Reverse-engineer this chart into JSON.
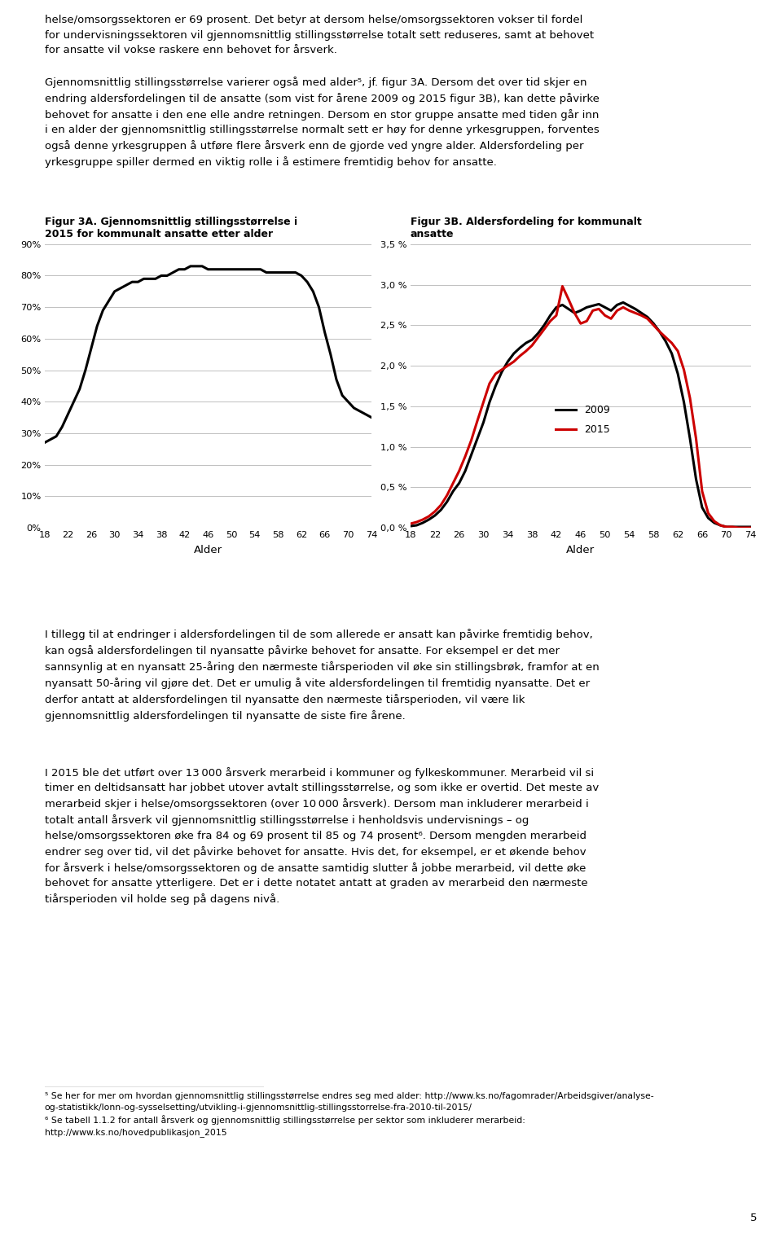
{
  "fig3a_title_line1": "Figur 3A. Gjennomsnittlig stillingsstørrelse i",
  "fig3a_title_line2": "2015 for kommunalt ansatte etter alder",
  "fig3b_title_line1": "Figur 3B. Aldersfordeling for kommunalt",
  "fig3b_title_line2": "ansatte",
  "xlabel": "Alder",
  "fig3a_yticks": [
    "0%",
    "10%",
    "20%",
    "30%",
    "40%",
    "50%",
    "60%",
    "70%",
    "80%",
    "90%"
  ],
  "fig3b_yticks": [
    "0,0 %",
    "0,5 %",
    "1,0 %",
    "1,5 %",
    "2,0 %",
    "2,5 %",
    "3,0 %",
    "3,5 %"
  ],
  "xtick_labels": [
    "18",
    "22",
    "26",
    "30",
    "34",
    "38",
    "42",
    "46",
    "50",
    "54",
    "58",
    "62",
    "66",
    "70",
    "74"
  ],
  "fig3a_ages": [
    18,
    19,
    20,
    21,
    22,
    23,
    24,
    25,
    26,
    27,
    28,
    29,
    30,
    31,
    32,
    33,
    34,
    35,
    36,
    37,
    38,
    39,
    40,
    41,
    42,
    43,
    44,
    45,
    46,
    47,
    48,
    49,
    50,
    51,
    52,
    53,
    54,
    55,
    56,
    57,
    58,
    59,
    60,
    61,
    62,
    63,
    64,
    65,
    66,
    67,
    68,
    69,
    70,
    71,
    72,
    73,
    74
  ],
  "fig3a_values": [
    27,
    28,
    29,
    32,
    36,
    40,
    44,
    50,
    57,
    64,
    69,
    72,
    75,
    76,
    77,
    78,
    78,
    79,
    79,
    79,
    80,
    80,
    81,
    82,
    82,
    83,
    83,
    83,
    82,
    82,
    82,
    82,
    82,
    82,
    82,
    82,
    82,
    82,
    81,
    81,
    81,
    81,
    81,
    81,
    80,
    78,
    75,
    70,
    62,
    55,
    47,
    42,
    40,
    38,
    37,
    36,
    35
  ],
  "fig3b_ages": [
    18,
    19,
    20,
    21,
    22,
    23,
    24,
    25,
    26,
    27,
    28,
    29,
    30,
    31,
    32,
    33,
    34,
    35,
    36,
    37,
    38,
    39,
    40,
    41,
    42,
    43,
    44,
    45,
    46,
    47,
    48,
    49,
    50,
    51,
    52,
    53,
    54,
    55,
    56,
    57,
    58,
    59,
    60,
    61,
    62,
    63,
    64,
    65,
    66,
    67,
    68,
    69,
    70,
    71,
    72,
    73,
    74
  ],
  "fig3b_2009": [
    0.02,
    0.03,
    0.06,
    0.1,
    0.15,
    0.22,
    0.32,
    0.45,
    0.55,
    0.7,
    0.9,
    1.1,
    1.3,
    1.55,
    1.75,
    1.92,
    2.05,
    2.15,
    2.22,
    2.28,
    2.32,
    2.4,
    2.5,
    2.62,
    2.72,
    2.75,
    2.7,
    2.65,
    2.68,
    2.72,
    2.74,
    2.76,
    2.72,
    2.68,
    2.75,
    2.78,
    2.74,
    2.7,
    2.65,
    2.6,
    2.52,
    2.42,
    2.3,
    2.15,
    1.9,
    1.55,
    1.1,
    0.6,
    0.25,
    0.12,
    0.06,
    0.03,
    0.01,
    0.01,
    0.01,
    0.01,
    0.01
  ],
  "fig3b_2015": [
    0.05,
    0.07,
    0.1,
    0.14,
    0.2,
    0.28,
    0.4,
    0.55,
    0.7,
    0.88,
    1.08,
    1.32,
    1.55,
    1.78,
    1.9,
    1.95,
    2.0,
    2.05,
    2.12,
    2.18,
    2.25,
    2.35,
    2.45,
    2.55,
    2.62,
    2.98,
    2.82,
    2.65,
    2.52,
    2.55,
    2.68,
    2.7,
    2.62,
    2.58,
    2.68,
    2.72,
    2.68,
    2.65,
    2.62,
    2.58,
    2.5,
    2.42,
    2.35,
    2.28,
    2.18,
    1.95,
    1.6,
    1.1,
    0.45,
    0.18,
    0.08,
    0.03,
    0.01,
    0.01,
    0.0,
    0.0,
    0.0
  ],
  "line_color": "#000000",
  "line_color_2009": "#000000",
  "line_color_2015": "#cc0000",
  "background_color": "#ffffff",
  "text_color": "#000000",
  "page_number": "5",
  "p1": "helse/omsorgssektoren er 69 prosent. Det betyr at dersom helse/omsorgssektoren vokser til fordel\nfor undervisningssektoren vil gjennomsnittlig stillingsstørrelse totalt sett reduseres, samt at behovet\nfor ansatte vil vokse raskere enn behovet for årsverk.",
  "p2": "Gjennomsnittlig stillingsstørrelse varierer også med alder⁵, jf. figur 3A. Dersom det over tid skjer en\nendring aldersfordelingen til de ansatte (som vist for årene 2009 og 2015 figur 3B), kan dette påvirke\nbehovet for ansatte i den ene elle andre retningen. Dersom en stor gruppe ansatte med tiden går inn\ni en alder der gjennomsnittlig stillingsstørrelse normalt sett er høy for denne yrkesgruppen, forventes\nogså denne yrkesgruppen å utføre flere årsverk enn de gjorde ved yngre alder. Aldersfordeling per\nyrkesgruppe spiller dermed en viktig rolle i å estimere fremtidig behov for ansatte.",
  "p3": "I tillegg til at endringer i aldersfordelingen til de som allerede er ansatt kan påvirke fremtidig behov,\nkan også aldersfordelingen til nyansatte påvirke behovet for ansatte. For eksempel er det mer\nsannsynlig at en nyansatt 25-åring den nærmeste tiårsperioden vil øke sin stillingsbrøk, framfor at en\nnyansatt 50-åring vil gjøre det. Det er umulig å vite aldersfordelingen til fremtidig nyansatte. Det er\nderfor antatt at aldersfordelingen til nyansatte den nærmeste tiårsperioden, vil være lik\ngjennomsnittlig aldersfordelingen til nyansatte de siste fire årene.",
  "p4": "I 2015 ble det utført over 13 000 årsverk merarbeid i kommuner og fylkeskommuner. Merarbeid vil si\ntimer en deltidsansatt har jobbet utover avtalt stillingsstørrelse, og som ikke er overtid. Det meste av\nmerarbeid skjer i helse/omsorgssektoren (over 10 000 årsverk). Dersom man inkluderer merarbeid i\ntotalt antall årsverk vil gjennomsnittlig stillingsstørrelse i henholdsvis undervisnings – og\nhelse/omsorgssektoren øke fra 84 og 69 prosent til 85 og 74 prosent⁶. Dersom mengden merarbeid\nendrer seg over tid, vil det påvirke behovet for ansatte. Hvis det, for eksempel, er et økende behov\nfor årsverk i helse/omsorgssektoren og de ansatte samtidig slutter å jobbe merarbeid, vil dette øke\nbehovet for ansatte ytterligere. Det er i dette notatet antatt at graden av merarbeid den nærmeste\ntiårsperioden vil holde seg på dagens nivå.",
  "fn5": "⁵ Se her for mer om hvordan gjennomsnittlig stillingsstørrelse endres seg med alder: ",
  "fn5_url": "http://www.ks.no/fagomrader/Arbeidsgiver/analyse-\nog-statistikk/lonn-og-sysselsetting/utvikling-i-gjennomsnittlig-stillingsstorrelse-fra-2010-til-2015/",
  "fn6": "⁶ Se tabell 1.1.2 for antall årsverk og gjennomsnittlig stillingsstørrelse per sektor som inkluderer merarbeid:",
  "fn6_url": "http://www.ks.no/hovedpublikasjon_2015",
  "chart_ylim_a": [
    0,
    0.9
  ],
  "chart_ylim_b": [
    0,
    3.5
  ],
  "grid_color": "#c0c0c0",
  "line_width": 2.2
}
